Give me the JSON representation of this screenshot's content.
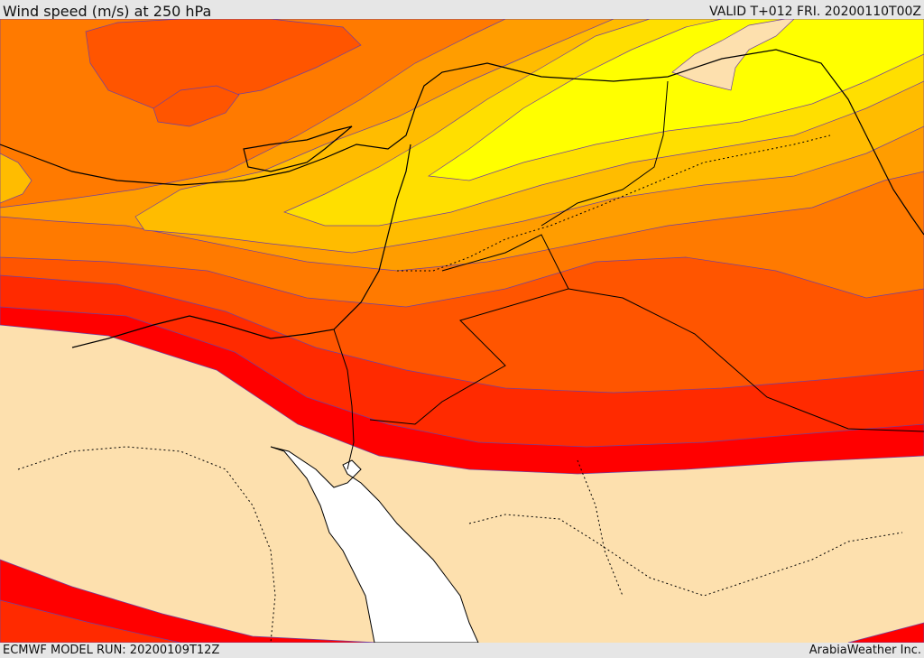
{
  "header": {
    "title": "Wind speed (m/s) at 250 hPa",
    "valid_time": "VALID T+012 FRI. 20200110T00Z"
  },
  "footer": {
    "model_run": "ECMWF MODEL RUN: 20200109T12Z",
    "credit": "ArabiaWeather Inc."
  },
  "map": {
    "field": "wind speed at 250 hPa",
    "colors": {
      "land_low": "#fde0ae",
      "band_1": "#ff0000",
      "band_2": "#ff2a00",
      "band_3": "#ff5500",
      "band_4": "#ff7a00",
      "band_5": "#ff9d00",
      "band_6": "#ffbc00",
      "band_7": "#ffdf00",
      "band_8": "#ffff00",
      "sea": "#ffffff",
      "coastline": "#000000"
    }
  }
}
